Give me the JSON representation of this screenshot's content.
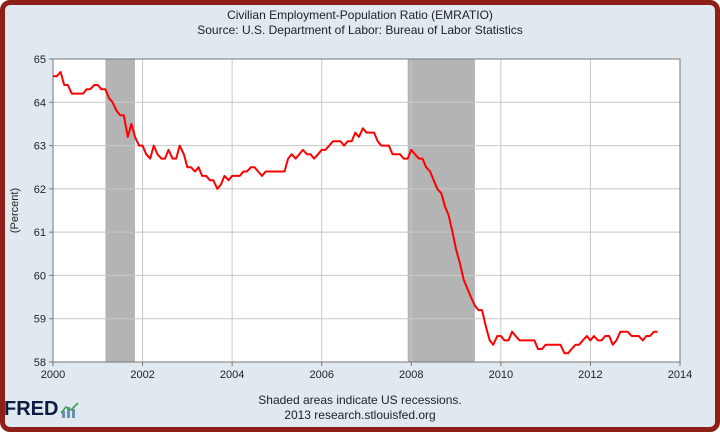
{
  "chart_data": {
    "type": "line",
    "title": "Civilian Employment-Population Ratio (EMRATIO)",
    "subtitle": "Source: U.S. Department of Labor: Bureau of Labor Statistics",
    "ylabel": "(Percent)",
    "xlabel": "",
    "xlim": [
      2000,
      2014
    ],
    "ylim": [
      58,
      65
    ],
    "x_ticks": [
      2000,
      2002,
      2004,
      2006,
      2008,
      2010,
      2012,
      2014
    ],
    "y_ticks": [
      58,
      59,
      60,
      61,
      62,
      63,
      64,
      65
    ],
    "grid": true,
    "line_color": "#ff0000",
    "recession_color": "#b4b4b4",
    "recessions": [
      [
        2001.17,
        2001.83
      ],
      [
        2007.92,
        2009.42
      ]
    ],
    "series": [
      {
        "x": [
          2000.0,
          2000.08,
          2000.17,
          2000.25,
          2000.33,
          2000.42,
          2000.5,
          2000.58,
          2000.67,
          2000.75,
          2000.83,
          2000.92,
          2001.0,
          2001.08,
          2001.17,
          2001.25,
          2001.33,
          2001.42,
          2001.5,
          2001.58,
          2001.67,
          2001.75,
          2001.83,
          2001.92,
          2002.0,
          2002.08,
          2002.17,
          2002.25,
          2002.33,
          2002.42,
          2002.5,
          2002.58,
          2002.67,
          2002.75,
          2002.83,
          2002.92,
          2003.0,
          2003.08,
          2003.17,
          2003.25,
          2003.33,
          2003.42,
          2003.5,
          2003.58,
          2003.67,
          2003.75,
          2003.83,
          2003.92,
          2004.0,
          2004.08,
          2004.17,
          2004.25,
          2004.33,
          2004.42,
          2004.5,
          2004.58,
          2004.67,
          2004.75,
          2004.83,
          2004.92,
          2005.0,
          2005.08,
          2005.17,
          2005.25,
          2005.33,
          2005.42,
          2005.5,
          2005.58,
          2005.67,
          2005.75,
          2005.83,
          2005.92,
          2006.0,
          2006.08,
          2006.17,
          2006.25,
          2006.33,
          2006.42,
          2006.5,
          2006.58,
          2006.67,
          2006.75,
          2006.83,
          2006.92,
          2007.0,
          2007.08,
          2007.17,
          2007.25,
          2007.33,
          2007.42,
          2007.5,
          2007.58,
          2007.67,
          2007.75,
          2007.83,
          2007.92,
          2008.0,
          2008.08,
          2008.17,
          2008.25,
          2008.33,
          2008.42,
          2008.5,
          2008.58,
          2008.67,
          2008.75,
          2008.83,
          2008.92,
          2009.0,
          2009.08,
          2009.17,
          2009.25,
          2009.33,
          2009.42,
          2009.5,
          2009.58,
          2009.67,
          2009.75,
          2009.83,
          2009.92,
          2010.0,
          2010.08,
          2010.17,
          2010.25,
          2010.33,
          2010.42,
          2010.5,
          2010.58,
          2010.67,
          2010.75,
          2010.83,
          2010.92,
          2011.0,
          2011.08,
          2011.17,
          2011.25,
          2011.33,
          2011.42,
          2011.5,
          2011.58,
          2011.67,
          2011.75,
          2011.83,
          2011.92,
          2012.0,
          2012.08,
          2012.17,
          2012.25,
          2012.33,
          2012.42,
          2012.5,
          2012.58,
          2012.67,
          2012.75,
          2012.83,
          2012.92,
          2013.0,
          2013.08,
          2013.17,
          2013.25,
          2013.33,
          2013.42,
          2013.5
        ],
        "values": [
          64.6,
          64.6,
          64.7,
          64.4,
          64.4,
          64.2,
          64.2,
          64.2,
          64.2,
          64.3,
          64.3,
          64.4,
          64.4,
          64.3,
          64.3,
          64.1,
          64.0,
          63.8,
          63.7,
          63.7,
          63.2,
          63.5,
          63.2,
          63.0,
          63.0,
          62.8,
          62.7,
          63.0,
          62.8,
          62.7,
          62.7,
          62.9,
          62.7,
          62.7,
          63.0,
          62.8,
          62.5,
          62.5,
          62.4,
          62.5,
          62.3,
          62.3,
          62.2,
          62.2,
          62.0,
          62.1,
          62.3,
          62.2,
          62.3,
          62.3,
          62.3,
          62.4,
          62.4,
          62.5,
          62.5,
          62.4,
          62.3,
          62.4,
          62.4,
          62.4,
          62.4,
          62.4,
          62.4,
          62.7,
          62.8,
          62.7,
          62.8,
          62.9,
          62.8,
          62.8,
          62.7,
          62.8,
          62.9,
          62.9,
          63.0,
          63.1,
          63.1,
          63.1,
          63.0,
          63.1,
          63.1,
          63.3,
          63.2,
          63.4,
          63.3,
          63.3,
          63.3,
          63.1,
          63.0,
          63.0,
          63.0,
          62.8,
          62.8,
          62.8,
          62.7,
          62.7,
          62.9,
          62.8,
          62.7,
          62.7,
          62.5,
          62.4,
          62.2,
          62.0,
          61.9,
          61.6,
          61.4,
          61.0,
          60.6,
          60.3,
          59.9,
          59.7,
          59.5,
          59.3,
          59.2,
          59.2,
          58.8,
          58.5,
          58.4,
          58.6,
          58.6,
          58.5,
          58.5,
          58.7,
          58.6,
          58.5,
          58.5,
          58.5,
          58.5,
          58.5,
          58.3,
          58.3,
          58.4,
          58.4,
          58.4,
          58.4,
          58.4,
          58.2,
          58.2,
          58.3,
          58.4,
          58.4,
          58.5,
          58.6,
          58.5,
          58.6,
          58.5,
          58.5,
          58.6,
          58.6,
          58.4,
          58.5,
          58.7,
          58.7,
          58.7,
          58.6,
          58.6,
          58.6,
          58.5,
          58.6,
          58.6,
          58.7,
          58.7
        ]
      }
    ]
  },
  "footnote": {
    "line1": "Shaded areas indicate US recessions.",
    "line2": "2013 research.stlouisfed.org"
  },
  "logo": {
    "text": "FRED",
    "icon": "fred-chart-icon"
  }
}
